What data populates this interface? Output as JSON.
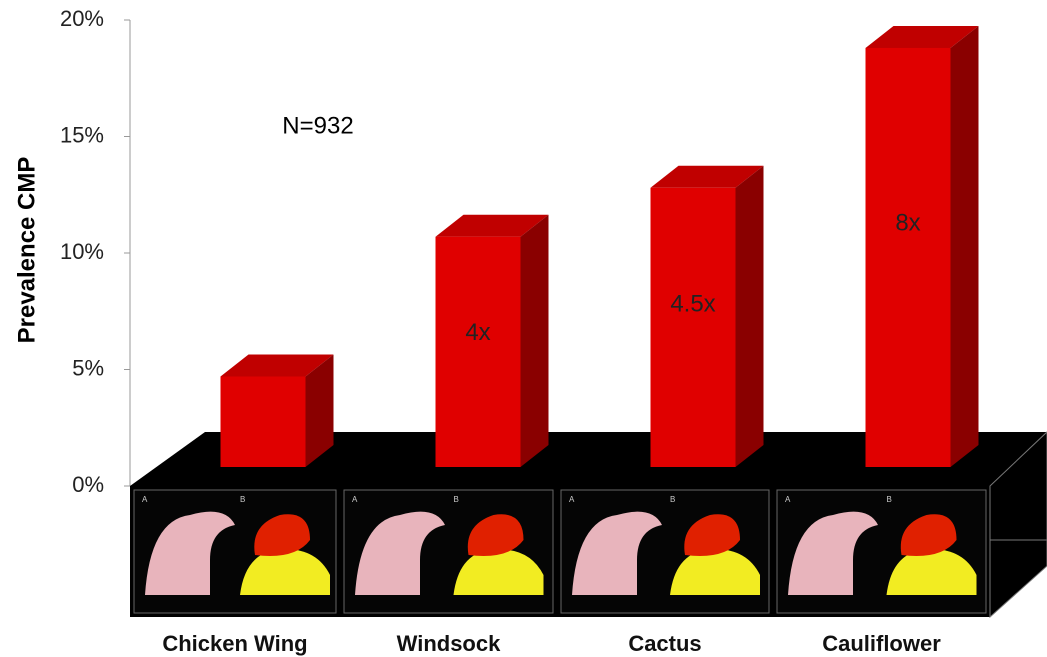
{
  "chart_data": {
    "type": "bar3d",
    "y_axis_label": "Prevalence CMP",
    "annotation": "N=932",
    "categories": [
      "Chicken Wing",
      "Windsock",
      "Cactus",
      "Cauliflower"
    ],
    "values": [
      4.7,
      10.7,
      12.8,
      18.8
    ],
    "bar_labels": [
      null,
      "4x",
      "4.5x",
      "8x"
    ],
    "panel_labels": [
      [
        "A",
        "B"
      ],
      [
        "A",
        "B"
      ],
      [
        "A",
        "B"
      ],
      [
        "A",
        "B"
      ]
    ],
    "color": "#e00000",
    "ylim": [
      0,
      20
    ],
    "yticks": [
      {
        "value": 0,
        "label": "0%"
      },
      {
        "value": 5,
        "label": "5%"
      },
      {
        "value": 10,
        "label": "10%"
      },
      {
        "value": 15,
        "label": "15%"
      },
      {
        "value": 20,
        "label": "20%"
      }
    ]
  }
}
